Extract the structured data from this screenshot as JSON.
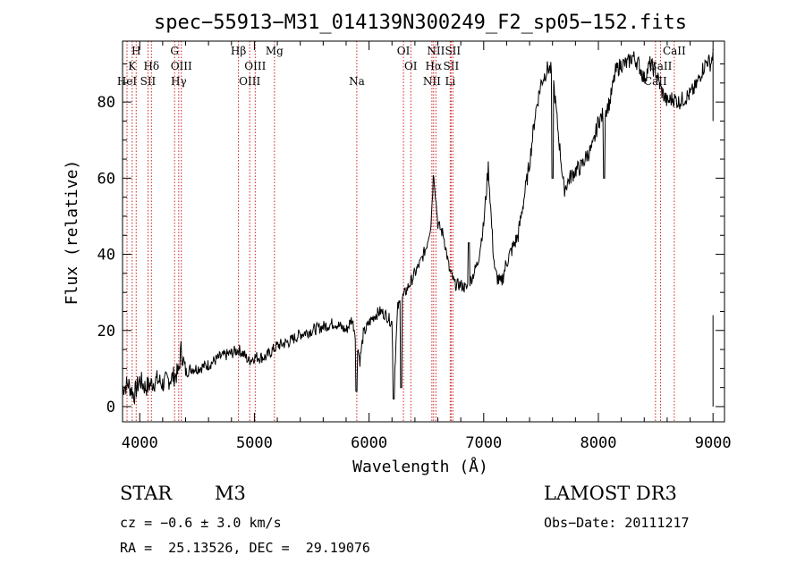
{
  "chart_data": {
    "type": "line",
    "title": "spec−55913−M31_014139N300249_F2_sp05−152.fits",
    "xlabel": "Wavelength (Å)",
    "ylabel": "Flux (relative)",
    "xlim": [
      3850,
      9100
    ],
    "ylim": [
      -4,
      96
    ],
    "xticks": [
      4000,
      5000,
      6000,
      7000,
      8000,
      9000
    ],
    "yticks": [
      0,
      20,
      40,
      60,
      80
    ],
    "grid": false,
    "series": [
      {
        "name": "flux",
        "x": [
          3850,
          3900,
          3950,
          4000,
          4050,
          4100,
          4150,
          4200,
          4250,
          4300,
          4340,
          4360,
          4400,
          4450,
          4500,
          4600,
          4700,
          4800,
          4861,
          4900,
          4950,
          5000,
          5100,
          5200,
          5300,
          5400,
          5500,
          5600,
          5700,
          5800,
          5850,
          5890,
          5920,
          5950,
          6000,
          6050,
          6100,
          6150,
          6200,
          6215,
          6250,
          6300,
          6350,
          6400,
          6450,
          6500,
          6540,
          6563,
          6600,
          6650,
          6700,
          6750,
          6800,
          6850,
          6900,
          6950,
          7000,
          7040,
          7080,
          7100,
          7150,
          7200,
          7300,
          7400,
          7450,
          7500,
          7560,
          7600,
          7650,
          7700,
          7750,
          7800,
          7850,
          7900,
          7950,
          8000,
          8050,
          8100,
          8150,
          8200,
          8250,
          8300,
          8350,
          8400,
          8450,
          8500,
          8550,
          8600,
          8650,
          8700,
          8750,
          8800,
          8850,
          8900,
          8950,
          8980,
          9000
        ],
        "values": [
          5,
          6,
          3,
          7,
          5,
          6,
          7,
          6,
          7,
          8,
          9,
          15,
          9,
          10,
          10,
          11,
          13,
          14,
          15,
          14,
          12,
          13,
          13,
          16,
          17,
          19,
          20,
          21,
          22,
          20,
          23,
          18,
          12,
          19,
          22,
          24,
          25,
          24,
          22,
          4,
          26,
          29,
          32,
          35,
          38,
          42,
          48,
          62,
          48,
          45,
          36,
          32,
          32,
          31,
          34,
          38,
          48,
          63,
          42,
          35,
          32,
          38,
          45,
          64,
          77,
          85,
          89,
          88,
          72,
          57,
          60,
          62,
          63,
          66,
          68,
          75,
          77,
          80,
          88,
          90,
          90,
          92,
          90,
          86,
          90,
          88,
          83,
          80,
          81,
          80,
          81,
          82,
          84,
          88,
          91,
          90,
          93
        ]
      }
    ],
    "dips": [
      {
        "x": 5890,
        "value": 4
      },
      {
        "x": 6215,
        "value": 2
      },
      {
        "x": 6280,
        "value": 5
      },
      {
        "x": 6870,
        "value": 43
      },
      {
        "x": 7600,
        "value": 60
      },
      {
        "x": 8050,
        "value": 60
      }
    ],
    "line_markers": [
      {
        "x": 3889,
        "labels": [
          {
            "text": "HeI",
            "row": 3
          }
        ]
      },
      {
        "x": 3934,
        "labels": [
          {
            "text": "K",
            "row": 2
          }
        ]
      },
      {
        "x": 3969,
        "labels": [
          {
            "text": "H",
            "row": 1
          }
        ]
      },
      {
        "x": 4072,
        "labels": [
          {
            "text": "SII",
            "row": 3
          }
        ]
      },
      {
        "x": 4102,
        "labels": [
          {
            "text": "Hδ",
            "row": 2
          }
        ]
      },
      {
        "x": 4304,
        "labels": [
          {
            "text": "G",
            "row": 1
          }
        ]
      },
      {
        "x": 4340,
        "labels": [
          {
            "text": "Hγ",
            "row": 3
          }
        ]
      },
      {
        "x": 4363,
        "labels": [
          {
            "text": "OIII",
            "row": 2
          }
        ]
      },
      {
        "x": 4861,
        "labels": [
          {
            "text": "Hβ",
            "row": 1
          }
        ]
      },
      {
        "x": 4959,
        "labels": [
          {
            "text": "OIII",
            "row": 3
          }
        ]
      },
      {
        "x": 5007,
        "labels": [
          {
            "text": "OIII",
            "row": 2
          }
        ]
      },
      {
        "x": 5175,
        "labels": [
          {
            "text": "Mg",
            "row": 1
          }
        ]
      },
      {
        "x": 5893,
        "labels": [
          {
            "text": "Na",
            "row": 3
          }
        ]
      },
      {
        "x": 6300,
        "labels": [
          {
            "text": "OI",
            "row": 1
          }
        ]
      },
      {
        "x": 6364,
        "labels": [
          {
            "text": "OI",
            "row": 2
          }
        ]
      },
      {
        "x": 6548,
        "labels": [
          {
            "text": "NII",
            "row": 3
          }
        ]
      },
      {
        "x": 6563,
        "labels": [
          {
            "text": "Hα",
            "row": 2
          }
        ]
      },
      {
        "x": 6583,
        "labels": [
          {
            "text": "NII",
            "row": 1
          }
        ]
      },
      {
        "x": 6716,
        "labels": [
          {
            "text": "SII",
            "row": 2
          }
        ]
      },
      {
        "x": 6708,
        "labels": [
          {
            "text": "Li",
            "row": 3
          }
        ]
      },
      {
        "x": 6731,
        "labels": [
          {
            "text": "SII",
            "row": 1
          }
        ]
      },
      {
        "x": 8498,
        "labels": [
          {
            "text": "CaII",
            "row": 3
          }
        ]
      },
      {
        "x": 8542,
        "labels": [
          {
            "text": "CaII",
            "row": 2
          }
        ]
      },
      {
        "x": 8662,
        "labels": [
          {
            "text": "CaII",
            "row": 1
          }
        ]
      }
    ]
  },
  "info": {
    "class": "STAR",
    "subclass": "M3",
    "survey": "LAMOST DR3",
    "cz": "cz = −0.6 ± 3.0 km/s",
    "obs_date": "Obs−Date: 20111217",
    "coords": "RA =  25.13526, DEC =  29.19076"
  },
  "colors": {
    "spectrum": "#000000",
    "marker": "#cc2222",
    "axis": "#000000"
  }
}
